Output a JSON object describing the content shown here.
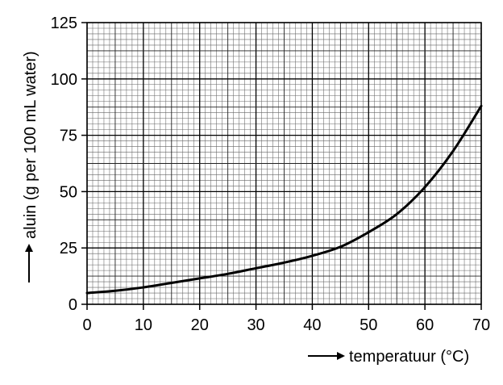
{
  "chart_data": {
    "type": "line",
    "title": "",
    "xlabel": "temperatuur (°C)",
    "ylabel": "aluin (g per 100 mL water)",
    "xlim": [
      0,
      70
    ],
    "ylim": [
      0,
      125
    ],
    "x_ticks": [
      "0",
      "10",
      "20",
      "30",
      "40",
      "50",
      "60",
      "70"
    ],
    "y_ticks": [
      "0",
      "25",
      "50",
      "75",
      "100",
      "125"
    ],
    "grid": true,
    "series": [
      {
        "x": [
          0,
          5,
          10,
          15,
          20,
          25,
          30,
          35,
          40,
          45,
          50,
          55,
          60,
          65,
          70
        ],
        "values": [
          5,
          6,
          7.5,
          9.5,
          11.5,
          13.5,
          16,
          18.5,
          21.5,
          25.5,
          32,
          40,
          52,
          68,
          88
        ]
      }
    ]
  }
}
